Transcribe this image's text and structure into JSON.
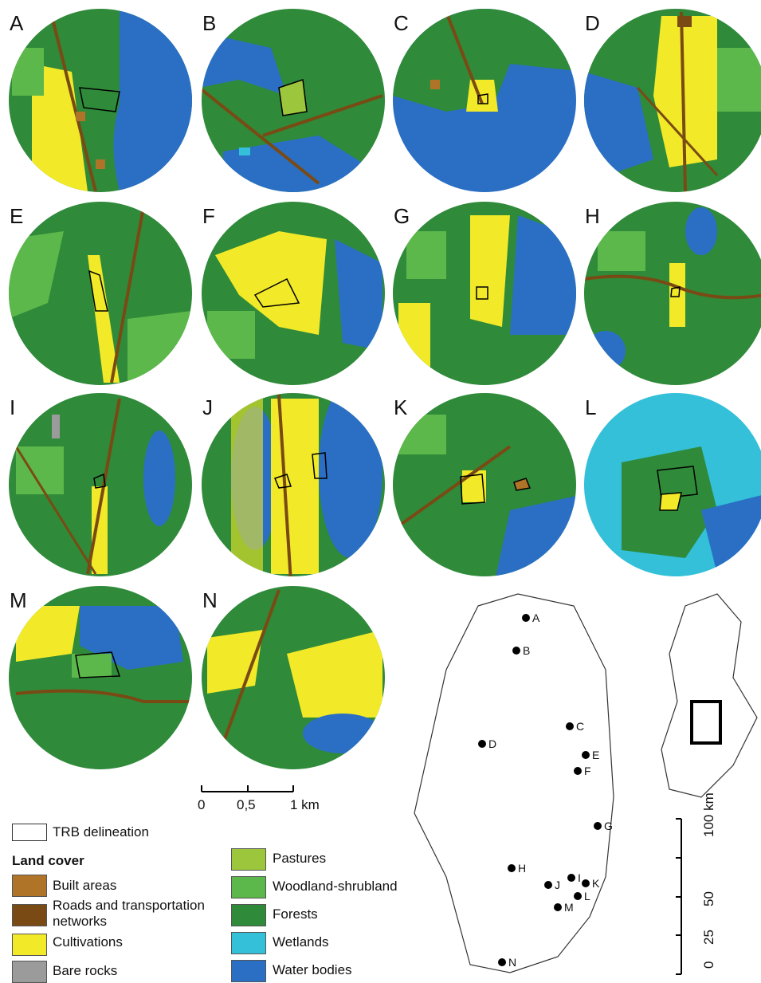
{
  "panels": [
    {
      "letter": "A"
    },
    {
      "letter": "B"
    },
    {
      "letter": "C"
    },
    {
      "letter": "D"
    },
    {
      "letter": "E"
    },
    {
      "letter": "F"
    },
    {
      "letter": "G"
    },
    {
      "letter": "H"
    },
    {
      "letter": "I"
    },
    {
      "letter": "J"
    },
    {
      "letter": "K"
    },
    {
      "letter": "L"
    },
    {
      "letter": "M"
    },
    {
      "letter": "N"
    }
  ],
  "panel_scale": {
    "ticks": [
      "0",
      "0,5",
      "1 km"
    ]
  },
  "legend": {
    "trb_label": "TRB delineation",
    "title": "Land cover",
    "classes": [
      {
        "label": "Built areas",
        "color": "#b07428"
      },
      {
        "label": "Roads and transportation networks",
        "color": "#7a4a14"
      },
      {
        "label": "Cultivations",
        "color": "#f2ea28"
      },
      {
        "label": "Bare rocks",
        "color": "#9b9b9b"
      },
      {
        "label": "Pastures",
        "color": "#9cc63c"
      },
      {
        "label": "Woodland-shrubland",
        "color": "#5cb84a"
      },
      {
        "label": "Forests",
        "color": "#2f8a3a"
      },
      {
        "label": "Wetlands",
        "color": "#33c0d8"
      },
      {
        "label": "Water bodies",
        "color": "#2a6fc4"
      }
    ]
  },
  "sites": [
    "A",
    "B",
    "C",
    "D",
    "E",
    "F",
    "G",
    "H",
    "I",
    "J",
    "K",
    "L",
    "M",
    "N"
  ],
  "overview_scale": {
    "ticks": [
      "0",
      "25",
      "50",
      "100 km"
    ]
  }
}
